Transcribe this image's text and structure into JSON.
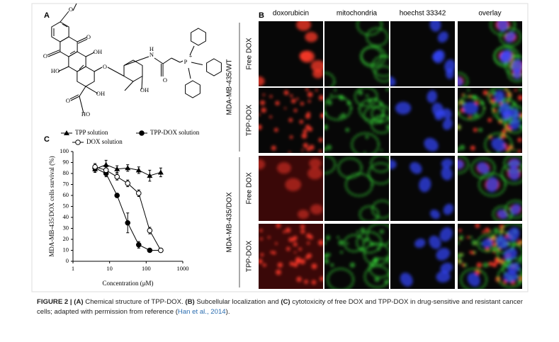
{
  "panel_labels": [
    "A",
    "B",
    "C"
  ],
  "chemical": {
    "name": "TPP-DOX",
    "atoms": [
      "O",
      "O",
      "O",
      "OH",
      "HO",
      "O",
      "OH",
      "HO",
      "O",
      "N",
      "H",
      "OH",
      "O",
      "P",
      "+"
    ]
  },
  "microscopy": {
    "columns": [
      "doxorubicin",
      "mitochondria",
      "hoechst 33342",
      "overlay"
    ],
    "groups": [
      {
        "name": "MDA-MB-435/WT",
        "rows": [
          "Free DOX",
          "TPP-DOX"
        ]
      },
      {
        "name": "MDA-MB-435/DOX",
        "rows": [
          "Free DOX",
          "TPP-DOX"
        ]
      }
    ]
  },
  "chart_data": {
    "type": "line",
    "xlabel": "Concentration (μM)",
    "ylabel": "MDA-MB-435/DOX cells survival (%)",
    "x": [
      4,
      8,
      16,
      31.25,
      62.5,
      125,
      250
    ],
    "series": [
      {
        "name": "TPP solution",
        "color": "#000000",
        "marker": "triangle",
        "values": [
          84,
          88,
          84,
          85,
          83,
          78,
          81
        ],
        "errors": [
          3,
          4,
          3,
          3,
          3,
          5,
          4
        ]
      },
      {
        "name": "TPP-DOX solution",
        "color": "#000000",
        "marker": "circle",
        "values": [
          85,
          80,
          60,
          35,
          15,
          10,
          10
        ],
        "errors": [
          3,
          3,
          2,
          9,
          3,
          1,
          1
        ]
      },
      {
        "name": "DOX solution",
        "color": "#000000",
        "marker": "open-circle",
        "values": [
          86,
          83,
          77,
          71,
          62,
          28,
          10
        ],
        "errors": [
          3,
          3,
          3,
          3,
          3,
          3,
          1
        ]
      }
    ],
    "xscale": "log",
    "xlim": [
      1,
      1000
    ],
    "xticks": [
      1,
      10,
      100,
      1000
    ],
    "ylim": [
      0,
      100
    ],
    "yticks": [
      0,
      10,
      20,
      30,
      40,
      50,
      60,
      70,
      80,
      90,
      100
    ]
  },
  "caption": [
    {
      "text": "FIGURE 2 | ",
      "style": "bold"
    },
    {
      "text": "(A)",
      "style": "bold"
    },
    {
      "text": " Chemical structure of TPP-DOX. ",
      "style": "plain"
    },
    {
      "text": "(B)",
      "style": "bold"
    },
    {
      "text": " Subcellular localization and ",
      "style": "plain"
    },
    {
      "text": "(C)",
      "style": "bold"
    },
    {
      "text": " cytotoxicity of free DOX and TPP-DOX in drug-sensitive and resistant cancer cells; adapted with permission from reference (",
      "style": "plain"
    },
    {
      "text": "Han et al., 2014",
      "style": "link"
    },
    {
      "text": ").",
      "style": "plain"
    }
  ]
}
